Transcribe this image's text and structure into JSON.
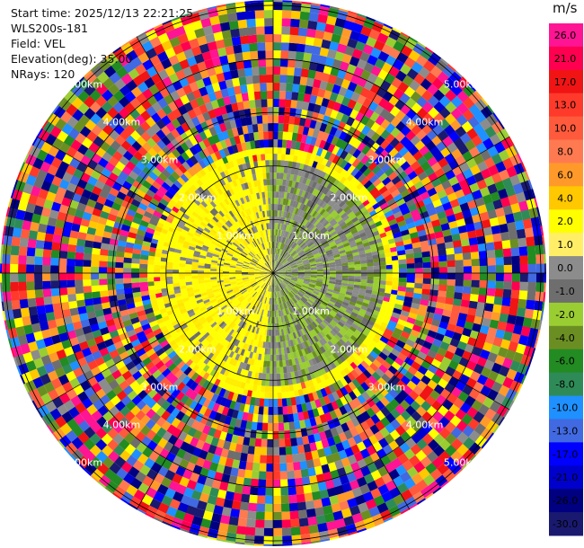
{
  "info": {
    "start_time": "Start time: 2025/12/13 22:21:25",
    "instrument": "WLS200s-181",
    "field": "Field: VEL",
    "elevation": "Elevation(deg): 35.00",
    "nrays": "NRays: 120"
  },
  "colorbar": {
    "unit": "m/s",
    "ticks": [
      "26.0",
      "21.0",
      "17.0",
      "13.0",
      "10.0",
      "8.0",
      "6.0",
      "4.0",
      "2.0",
      "1.0",
      "0.0",
      "-1.0",
      "-2.0",
      "-4.0",
      "-6.0",
      "-8.0",
      "-10.0",
      "-13.0",
      "-17.0",
      "-21.0",
      "-26.0",
      "-30.0"
    ],
    "colors": [
      "#ff1493",
      "#ff0050",
      "#f01414",
      "#ff3a2a",
      "#ff5a3c",
      "#ff7a50",
      "#ff9a2a",
      "#ffc800",
      "#ffff00",
      "#ffee66",
      "#8c8c8c",
      "#6e6e6e",
      "#9acd32",
      "#6b8e23",
      "#228b22",
      "#2e8b57",
      "#1e90ff",
      "#4169e1",
      "#0000ff",
      "#0000cd",
      "#000080",
      "#191970"
    ]
  },
  "chart_data": {
    "type": "heatmap",
    "projection": "polar (PPI scan)",
    "field": "VEL",
    "units": "m/s",
    "elevation_deg": 35.0,
    "nrays": 120,
    "color_range": [
      -30.0,
      26.0
    ],
    "range_ring_labels": [
      "1.00km",
      "2.00km",
      "3.00km",
      "4.00km",
      "5.00km"
    ],
    "range_rings_km": [
      1,
      2,
      3,
      4,
      5
    ],
    "max_range_km": 5.1,
    "spokes_deg": [
      0,
      30,
      60,
      90,
      120,
      150,
      180,
      210,
      240,
      270,
      300,
      330
    ],
    "regions": [
      {
        "range_km": [
          0.0,
          2.0
        ],
        "description": "inner echo: yellow (west) / grey-green (east)"
      },
      {
        "range_km": [
          2.0,
          2.3
        ],
        "description": "yellow ring"
      },
      {
        "range_km": [
          2.3,
          5.1
        ],
        "description": "noise: mixed random colors"
      }
    ]
  }
}
